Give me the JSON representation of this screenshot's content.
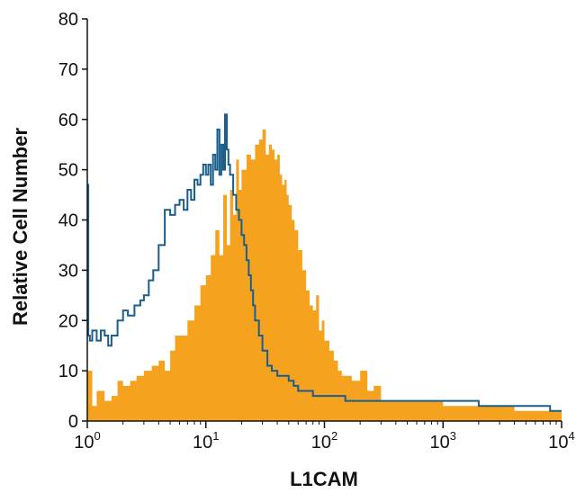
{
  "chart_data": {
    "type": "area",
    "title": "",
    "xlabel": "L1CAM",
    "ylabel": "Relative Cell Number",
    "xscale": "log",
    "xlim": [
      1,
      10000
    ],
    "ylim": [
      0,
      80
    ],
    "yticks": [
      0,
      10,
      20,
      30,
      40,
      50,
      60,
      70,
      80
    ],
    "xticks": [
      {
        "base": "10",
        "exp": "0",
        "value": 1
      },
      {
        "base": "10",
        "exp": "1",
        "value": 10
      },
      {
        "base": "10",
        "exp": "2",
        "value": 100
      },
      {
        "base": "10",
        "exp": "3",
        "value": 1000
      },
      {
        "base": "10",
        "exp": "4",
        "value": 10000
      }
    ],
    "grid": false,
    "legend": "none",
    "series": [
      {
        "style": "filled",
        "color": "#f5a31f",
        "x": [
          1,
          1.1,
          1.2,
          1.4,
          1.6,
          1.8,
          2.0,
          2.3,
          2.6,
          3.0,
          3.5,
          4.0,
          4.5,
          5.0,
          5.5,
          6.0,
          7.0,
          8.0,
          9.0,
          10,
          11,
          12,
          13,
          14,
          15,
          16,
          17,
          18,
          19,
          20,
          22,
          24,
          26,
          28,
          30,
          32,
          34,
          36,
          38,
          40,
          42,
          44,
          46,
          48,
          50,
          53,
          56,
          60,
          65,
          70,
          75,
          80,
          85,
          90,
          95,
          100,
          110,
          120,
          130,
          140,
          150,
          170,
          200,
          230,
          260,
          300,
          350,
          400,
          450,
          500,
          600,
          700,
          800,
          1000,
          1200,
          1500,
          2000,
          2500,
          3000,
          4000,
          5000,
          6000,
          7000,
          8000,
          9000,
          10000
        ],
        "y": [
          10,
          3,
          6,
          4,
          5,
          8,
          7,
          8,
          9,
          10,
          11,
          12,
          10,
          14,
          17,
          17,
          20,
          23,
          27,
          29,
          33,
          38,
          33,
          45,
          35,
          46,
          41,
          52,
          46,
          50,
          53,
          52,
          55,
          56,
          58,
          53,
          55,
          54,
          52,
          53,
          49,
          47,
          48,
          45,
          43,
          40,
          38,
          34,
          30,
          26,
          23,
          22,
          25,
          18,
          20,
          16,
          14,
          12,
          10,
          9,
          9,
          8,
          10,
          6,
          7,
          4,
          4,
          4,
          4,
          4,
          4,
          4,
          4,
          3,
          3,
          3,
          3,
          3,
          3,
          2,
          2,
          2,
          2,
          2,
          2,
          2
        ]
      },
      {
        "style": "line",
        "color": "#1b5e8c",
        "x": [
          1,
          1.02,
          1.05,
          1.1,
          1.2,
          1.3,
          1.4,
          1.5,
          1.6,
          1.8,
          2.0,
          2.2,
          2.5,
          2.8,
          3.0,
          3.3,
          3.6,
          4.0,
          4.5,
          5.0,
          5.5,
          6.0,
          6.5,
          7.0,
          7.5,
          8.0,
          8.5,
          9.0,
          9.5,
          10,
          10.5,
          11,
          11.5,
          12,
          12.5,
          13,
          13.5,
          14,
          14.5,
          15,
          15.5,
          16,
          17,
          18,
          19,
          20,
          21,
          22,
          23,
          24,
          25,
          26,
          28,
          30,
          33,
          36,
          40,
          45,
          50,
          55,
          60,
          70,
          80,
          90,
          100,
          120,
          150,
          200,
          300,
          400,
          500,
          600,
          800,
          1000,
          1500,
          2000,
          3000,
          4000,
          5000,
          6000,
          8000,
          10000
        ],
        "y": [
          47,
          17,
          16,
          18,
          16,
          18,
          17,
          15,
          17,
          20,
          22,
          21,
          23,
          24,
          25,
          28,
          30,
          35,
          42,
          41,
          43,
          44,
          42,
          46,
          44,
          48,
          47,
          49,
          51,
          49,
          51,
          47,
          53,
          50,
          58,
          49,
          55,
          50,
          61,
          54,
          51,
          49,
          45,
          42,
          40,
          37,
          35,
          32,
          29,
          26,
          23,
          20,
          17,
          14,
          11,
          10,
          9,
          9,
          8,
          7,
          6,
          6,
          5,
          5,
          5,
          5,
          4,
          4,
          4,
          4,
          4,
          4,
          4,
          4,
          4,
          3,
          3,
          3,
          3,
          3,
          2,
          2
        ]
      }
    ]
  }
}
